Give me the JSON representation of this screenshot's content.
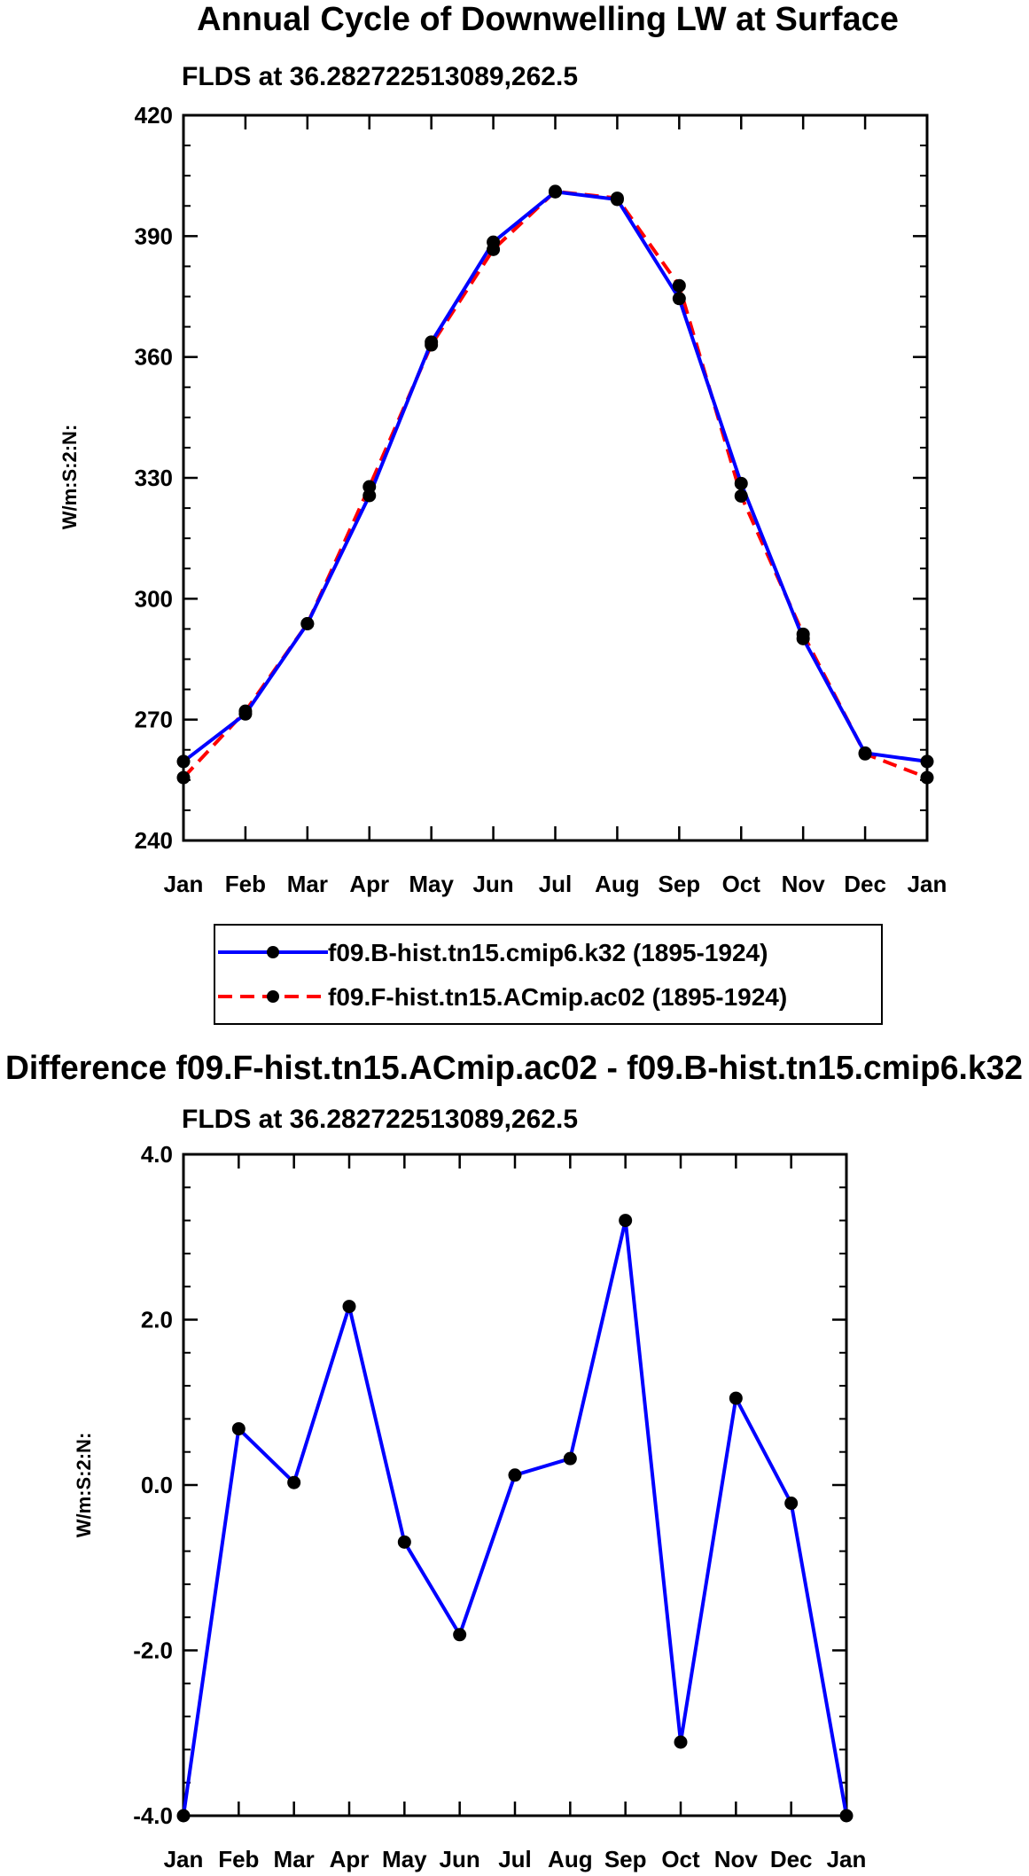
{
  "chart_data": [
    {
      "type": "line",
      "title": "Annual Cycle of Downwelling LW at Surface",
      "subtitle": "FLDS at 36.282722513089,262.5",
      "xlabel": "",
      "ylabel": "W/m:S:2:N:",
      "categories": [
        "Jan",
        "Feb",
        "Mar",
        "Apr",
        "May",
        "Jun",
        "Jul",
        "Aug",
        "Sep",
        "Oct",
        "Nov",
        "Dec",
        "Jan"
      ],
      "ylim": [
        240,
        420
      ],
      "yticks": [
        "240",
        "270",
        "300",
        "330",
        "360",
        "390",
        "420"
      ],
      "legend_position": "below",
      "series": [
        {
          "name": "f09.B-hist.tn15.cmip6.k32 (1895-1924)",
          "color": "#0000ff",
          "dash": "solid",
          "values": [
            259.6,
            271.4,
            293.8,
            325.6,
            363.7,
            388.5,
            401.0,
            399.1,
            374.5,
            328.6,
            290.1,
            261.7,
            259.6
          ]
        },
        {
          "name": "f09.F-hist.tn15.ACmip.ac02 (1895-1924)",
          "color": "#ff0000",
          "dash": "dashed",
          "values": [
            255.6,
            272.1,
            293.8,
            327.8,
            363.0,
            386.7,
            401.1,
            399.4,
            377.7,
            325.5,
            291.2,
            261.5,
            255.6
          ]
        }
      ]
    },
    {
      "type": "line",
      "title": "Difference f09.F-hist.tn15.ACmip.ac02 - f09.B-hist.tn15.cmip6.k32",
      "subtitle": "FLDS at 36.282722513089,262.5",
      "xlabel": "",
      "ylabel": "W/m:S:2:N:",
      "categories": [
        "Jan",
        "Feb",
        "Mar",
        "Apr",
        "May",
        "Jun",
        "Jul",
        "Aug",
        "Sep",
        "Oct",
        "Nov",
        "Dec",
        "Jan"
      ],
      "ylim": [
        -4.0,
        4.0
      ],
      "yticks": [
        "-4.0",
        "-2.0",
        "0.0",
        "2.0",
        "4.0"
      ],
      "series": [
        {
          "name": "Difference",
          "color": "#0000ff",
          "dash": "solid",
          "values": [
            -4.0,
            0.68,
            0.03,
            2.16,
            -0.69,
            -1.81,
            0.12,
            0.32,
            3.2,
            -3.11,
            1.05,
            -0.22,
            -4.0
          ]
        }
      ]
    }
  ]
}
